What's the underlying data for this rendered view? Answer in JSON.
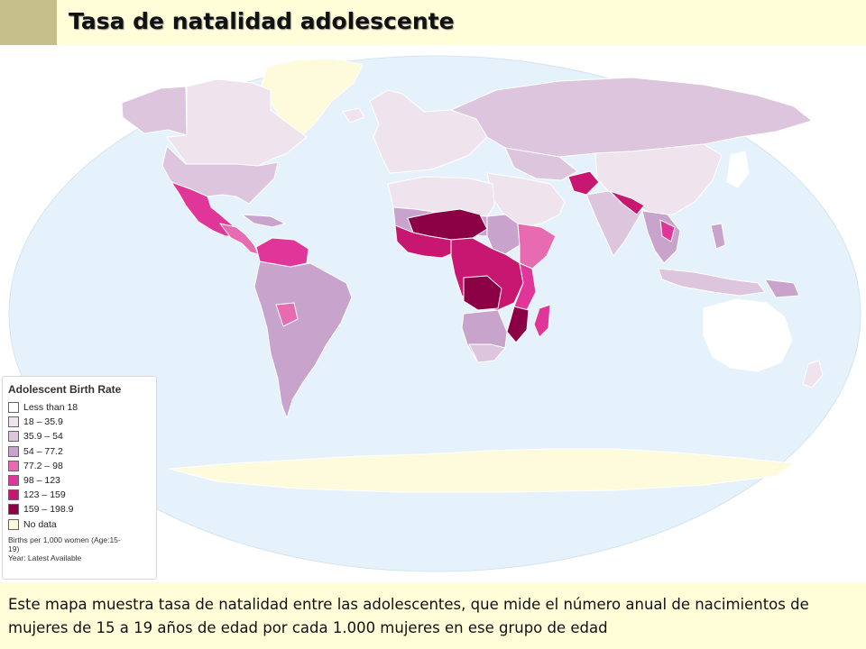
{
  "title": "Tasa de natalidad adolescente",
  "legend": {
    "title": "Adolescent Birth Rate",
    "items": [
      {
        "label": "Less than 18",
        "color": "#ffffff"
      },
      {
        "label": "18 – 35.9",
        "color": "#efe3ee"
      },
      {
        "label": "35.9 – 54",
        "color": "#dcc5dd"
      },
      {
        "label": "54 – 77.2",
        "color": "#c8a4cd"
      },
      {
        "label": "77.2 – 98",
        "color": "#e86ab0"
      },
      {
        "label": "98 – 123",
        "color": "#e0369a"
      },
      {
        "label": "123 – 159",
        "color": "#c81770"
      },
      {
        "label": "159 – 198.9",
        "color": "#8c0045"
      },
      {
        "label": "No data",
        "color": "#fdfbdc"
      }
    ],
    "note_1": "Births per 1,000 women (Age:15-",
    "note_2": "19)",
    "note_3": "Year: Latest Available"
  },
  "caption": "Este mapa muestra tasa de natalidad entre las adolescentes, que mide el número anual de nacimientos de mujeres de 15 a 19 años de edad por cada 1.000 mujeres en ese grupo de edad",
  "colors": {
    "ocean": "#e6f2fb",
    "title_band": "#fffed9",
    "title_accent": "#c5c08a",
    "border": "#ffffff"
  }
}
